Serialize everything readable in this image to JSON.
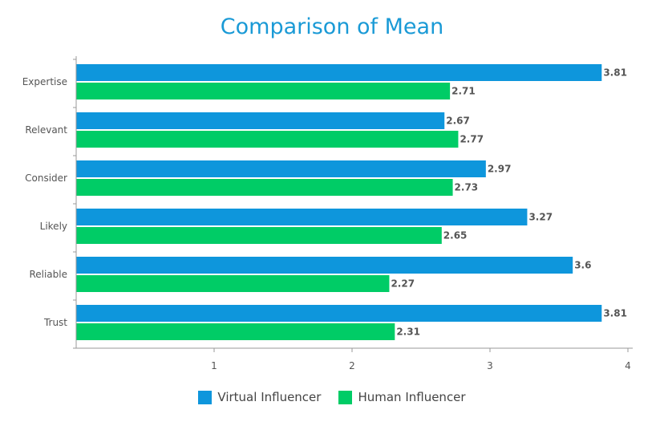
{
  "chart_data": {
    "type": "bar",
    "orientation": "horizontal",
    "title": "Comparison of Mean",
    "categories": [
      "Expertise",
      "Relevant",
      "Consider",
      "Likely",
      "Reliable",
      "Trust"
    ],
    "series": [
      {
        "name": "Virtual Influencer",
        "color": "#0e96dc",
        "values": [
          3.81,
          2.67,
          2.97,
          3.27,
          3.6,
          3.81
        ],
        "labels": [
          "3.81",
          "2.67",
          "2.97",
          "3.27",
          "3.6",
          "3.81"
        ]
      },
      {
        "name": "Human Influencer",
        "color": "#00cc66",
        "values": [
          2.71,
          2.77,
          2.73,
          2.65,
          2.27,
          2.31
        ],
        "labels": [
          "2.71",
          "2.77",
          "2.73",
          "2.65",
          "2.27",
          "2.31"
        ]
      }
    ],
    "xlim": [
      0,
      4
    ],
    "xticks": [
      1,
      2,
      3,
      4
    ],
    "grid": false,
    "legend": "bottom-center"
  }
}
